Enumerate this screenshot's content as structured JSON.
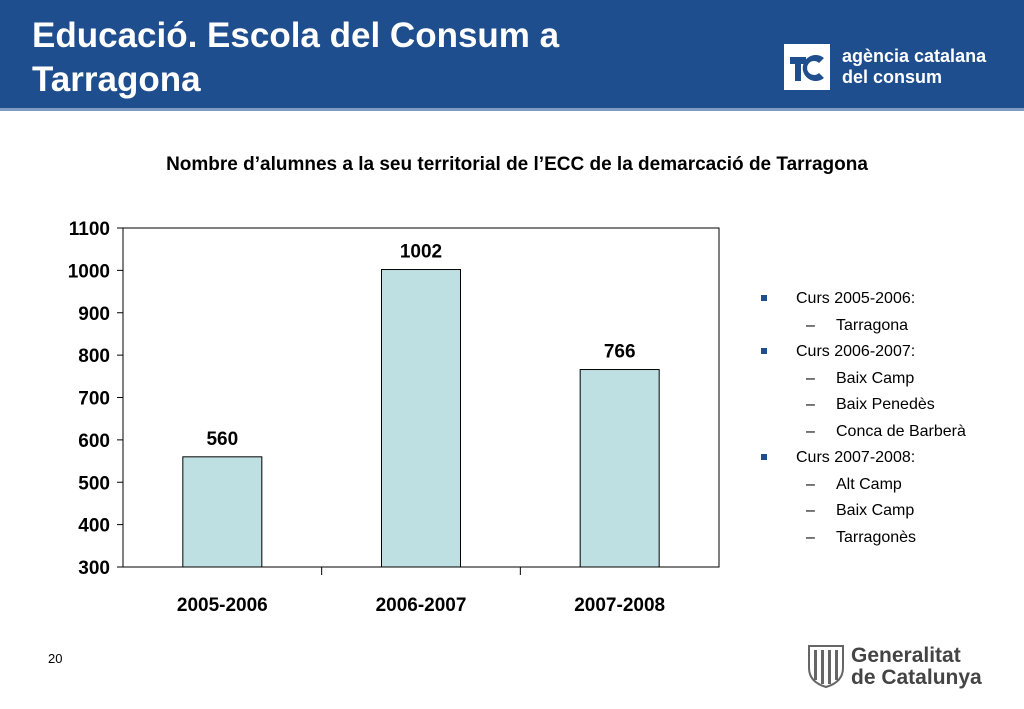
{
  "slide": {
    "title_line1": "Educació.  Escola del Consum a",
    "title_line2": "Tarragona",
    "page_number": "20"
  },
  "brand": {
    "logo_line1": "agència catalana",
    "logo_line2": "del consum",
    "footer_line1": "Generalitat",
    "footer_line2": "de Catalunya"
  },
  "colors": {
    "header": "#1f4e8e",
    "bar_fill": "#bfe0e3",
    "bar_stroke": "#000000"
  },
  "chart_data": {
    "type": "bar",
    "title": "Nombre d’alumnes a la seu territorial  de l’ECC de la demarcació de Tarragona",
    "categories": [
      "2005-2006",
      "2006-2007",
      "2007-2008"
    ],
    "values": [
      560,
      1002,
      766
    ],
    "ylim": [
      300,
      1100
    ],
    "yticks": [
      300,
      400,
      500,
      600,
      700,
      800,
      900,
      1000,
      1100
    ],
    "grid": false,
    "xlabel": "",
    "ylabel": ""
  },
  "legend": [
    {
      "level": 1,
      "text": "Curs 2005-2006:"
    },
    {
      "level": 2,
      "text": "Tarragona"
    },
    {
      "level": 1,
      "text": "Curs 2006-2007:"
    },
    {
      "level": 2,
      "text": "Baix Camp"
    },
    {
      "level": 2,
      "text": "Baix Penedès"
    },
    {
      "level": 2,
      "text": "Conca de Barberà"
    },
    {
      "level": 1,
      "text": "Curs 2007-2008:"
    },
    {
      "level": 2,
      "text": "Alt Camp"
    },
    {
      "level": 2,
      "text": "Baix Camp"
    },
    {
      "level": 2,
      "text": "Tarragonès"
    }
  ]
}
